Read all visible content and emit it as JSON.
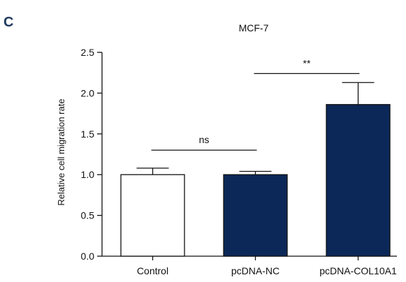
{
  "panel_label": "C",
  "chart_data": {
    "type": "bar",
    "title": "MCF-7",
    "xlabel": "",
    "ylabel": "Relative cell migration rate",
    "ylim": [
      0,
      2.5
    ],
    "yticks": [
      "0.0",
      "0.5",
      "1.0",
      "1.5",
      "2.0",
      "2.5"
    ],
    "categories": [
      "Control",
      "pcDNA-NC",
      "pcDNA-COL10A1"
    ],
    "values": [
      1.0,
      1.0,
      1.86
    ],
    "errors": [
      0.08,
      0.04,
      0.27
    ],
    "bar_colors": [
      "#ffffff",
      "#0b2858",
      "#0b2858"
    ],
    "edge_color": "#111111",
    "significance": [
      {
        "from": 0,
        "to": 1,
        "label": "ns",
        "y": 1.3
      },
      {
        "from": 1,
        "to": 2,
        "label": "**",
        "y": 2.24
      }
    ]
  }
}
